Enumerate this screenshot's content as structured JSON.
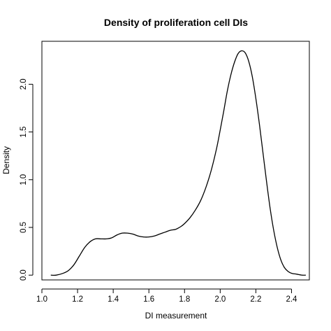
{
  "chart_data": {
    "type": "line",
    "title": "Density of proliferation cell DIs",
    "xlabel": "DI measurement",
    "ylabel": "Density",
    "xlim": [
      1.0,
      2.5
    ],
    "ylim": [
      -0.05,
      2.45
    ],
    "x_ticks": [
      1.0,
      1.2,
      1.4,
      1.6,
      1.8,
      2.0,
      2.2,
      2.4
    ],
    "x_tick_labels": [
      "1.0",
      "1.2",
      "1.4",
      "1.6",
      "1.8",
      "2.0",
      "2.2",
      "2.4"
    ],
    "y_ticks": [
      0.0,
      0.5,
      1.0,
      1.5,
      2.0
    ],
    "y_tick_labels": [
      "0.0",
      "0.5",
      "1.0",
      "1.5",
      "2.0"
    ],
    "grid": false,
    "legend": "none",
    "series": [
      {
        "x": [
          1.05,
          1.08,
          1.12,
          1.15,
          1.18,
          1.21,
          1.24,
          1.27,
          1.3,
          1.33,
          1.36,
          1.39,
          1.42,
          1.45,
          1.48,
          1.51,
          1.54,
          1.57,
          1.6,
          1.63,
          1.66,
          1.69,
          1.72,
          1.75,
          1.78,
          1.8,
          1.83,
          1.86,
          1.89,
          1.92,
          1.95,
          1.98,
          2.0,
          2.02,
          2.04,
          2.06,
          2.08,
          2.1,
          2.12,
          2.14,
          2.16,
          2.18,
          2.2,
          2.22,
          2.24,
          2.26,
          2.28,
          2.3,
          2.32,
          2.34,
          2.36,
          2.38,
          2.4,
          2.43,
          2.46,
          2.48
        ],
        "y": [
          0.0,
          0.0,
          0.02,
          0.05,
          0.11,
          0.2,
          0.29,
          0.35,
          0.38,
          0.38,
          0.38,
          0.39,
          0.42,
          0.44,
          0.44,
          0.43,
          0.41,
          0.4,
          0.4,
          0.41,
          0.43,
          0.45,
          0.47,
          0.48,
          0.51,
          0.54,
          0.6,
          0.68,
          0.78,
          0.92,
          1.1,
          1.33,
          1.52,
          1.72,
          1.93,
          2.1,
          2.23,
          2.32,
          2.35,
          2.33,
          2.24,
          2.08,
          1.85,
          1.58,
          1.28,
          0.98,
          0.7,
          0.47,
          0.29,
          0.16,
          0.08,
          0.04,
          0.02,
          0.01,
          0.0,
          0.0
        ]
      }
    ]
  }
}
